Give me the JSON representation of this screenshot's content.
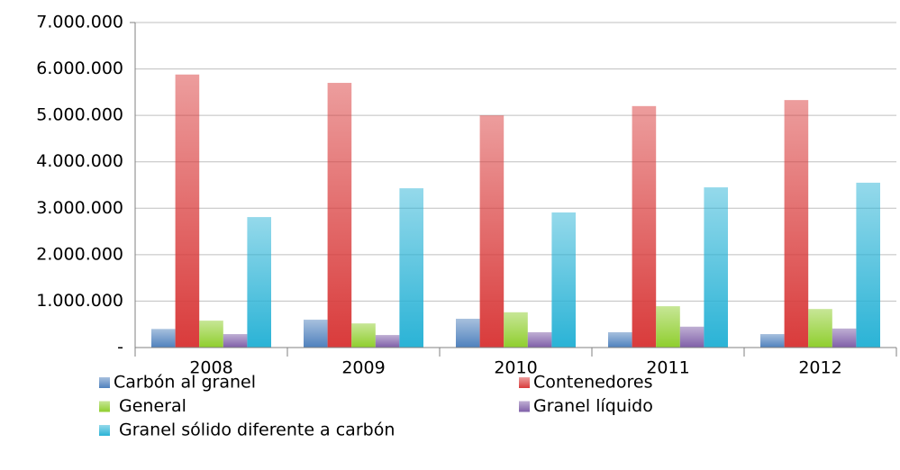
{
  "chart_data": {
    "type": "bar",
    "categories": [
      "2008",
      "2009",
      "2010",
      "2011",
      "2012"
    ],
    "series": [
      {
        "name": "Carbón al granel",
        "color": "#4f81bd",
        "values": [
          400000,
          600000,
          620000,
          330000,
          290000
        ]
      },
      {
        "name": "Contenedores",
        "color": "#d93b3b",
        "values": [
          5880000,
          5700000,
          5000000,
          5200000,
          5330000
        ]
      },
      {
        "name": "General",
        "color": "#8fce2d",
        "values": [
          580000,
          520000,
          760000,
          890000,
          830000
        ]
      },
      {
        "name": "Granel líquido",
        "color": "#7f5fa8",
        "values": [
          290000,
          270000,
          330000,
          450000,
          410000
        ]
      },
      {
        "name": "Granel sólido diferente a carbón",
        "color": "#2ab3d6",
        "values": [
          2810000,
          3430000,
          2910000,
          3450000,
          3550000
        ]
      }
    ],
    "ylim": [
      0,
      7000000
    ],
    "yticks": [
      {
        "value": 0,
        "label": "-"
      },
      {
        "value": 1000000,
        "label": "1.000.000"
      },
      {
        "value": 2000000,
        "label": "2.000.000"
      },
      {
        "value": 3000000,
        "label": "3.000.000"
      },
      {
        "value": 4000000,
        "label": "4.000.000"
      },
      {
        "value": 5000000,
        "label": "5.000.000"
      },
      {
        "value": 6000000,
        "label": "6.000.000"
      },
      {
        "value": 7000000,
        "label": "7.000.000"
      }
    ],
    "grid": true
  }
}
